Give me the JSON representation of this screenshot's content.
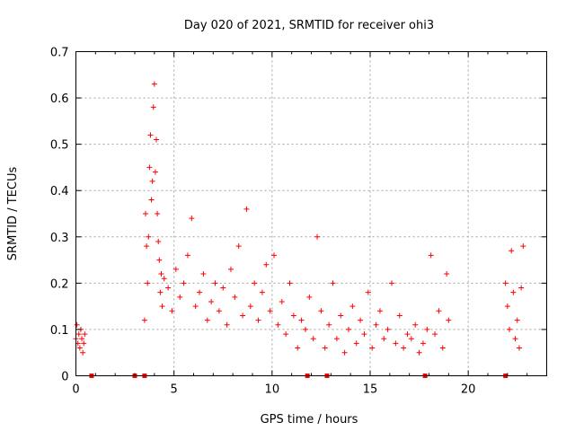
{
  "chart_data": {
    "type": "scatter",
    "title": "Day 020 of 2021, SRMTID for receiver ohi3",
    "xlabel": "GPS time / hours",
    "ylabel": "SRMTID / TECUs",
    "xlim": [
      0,
      24
    ],
    "ylim": [
      0,
      0.7
    ],
    "xticks": [
      0,
      5,
      10,
      15,
      20
    ],
    "xtick_labels": [
      "0",
      "5",
      "10",
      "15",
      "20"
    ],
    "yticks": [
      0,
      0.1,
      0.2,
      0.3,
      0.4,
      0.5,
      0.6,
      0.7
    ],
    "ytick_labels": [
      "0",
      "0.1",
      "0.2",
      "0.3",
      "0.4",
      "0.5",
      "0.6",
      "0.7"
    ],
    "grid": true,
    "marker": "+",
    "color": "#ff0000",
    "series": [
      {
        "name": "SRMTID",
        "x": [
          0.0,
          0.05,
          0.1,
          0.15,
          0.2,
          0.25,
          0.3,
          0.35,
          0.4,
          0.45,
          3.5,
          3.55,
          3.6,
          3.65,
          3.7,
          3.75,
          3.8,
          3.85,
          3.9,
          3.95,
          4.0,
          4.05,
          4.1,
          4.15,
          4.2,
          4.25,
          4.3,
          4.35,
          4.4,
          4.5,
          4.7,
          4.9,
          5.1,
          5.3,
          5.5,
          5.7,
          5.9,
          6.1,
          6.3,
          6.5,
          6.7,
          6.9,
          7.1,
          7.3,
          7.5,
          7.7,
          7.9,
          8.1,
          8.3,
          8.5,
          8.7,
          8.9,
          9.1,
          9.3,
          9.5,
          9.7,
          9.9,
          10.1,
          10.3,
          10.5,
          10.7,
          10.9,
          11.1,
          11.3,
          11.5,
          11.7,
          11.9,
          12.1,
          12.3,
          12.5,
          12.7,
          12.9,
          13.1,
          13.3,
          13.5,
          13.7,
          13.9,
          14.1,
          14.3,
          14.5,
          14.7,
          14.9,
          15.1,
          15.3,
          15.5,
          15.7,
          15.9,
          16.1,
          16.3,
          16.5,
          16.7,
          16.9,
          17.1,
          17.3,
          17.5,
          17.7,
          17.9,
          18.1,
          18.3,
          18.5,
          18.7,
          18.9,
          19.0,
          21.9,
          22.0,
          22.1,
          22.2,
          22.3,
          22.4,
          22.5,
          22.6,
          22.7,
          22.8
        ],
        "y": [
          0.08,
          0.11,
          0.07,
          0.09,
          0.06,
          0.1,
          0.08,
          0.05,
          0.07,
          0.09,
          0.12,
          0.35,
          0.28,
          0.2,
          0.3,
          0.45,
          0.52,
          0.38,
          0.42,
          0.58,
          0.63,
          0.44,
          0.51,
          0.35,
          0.29,
          0.25,
          0.18,
          0.22,
          0.15,
          0.21,
          0.19,
          0.14,
          0.23,
          0.17,
          0.2,
          0.26,
          0.34,
          0.15,
          0.18,
          0.22,
          0.12,
          0.16,
          0.2,
          0.14,
          0.19,
          0.11,
          0.23,
          0.17,
          0.28,
          0.13,
          0.36,
          0.15,
          0.2,
          0.12,
          0.18,
          0.24,
          0.14,
          0.26,
          0.11,
          0.16,
          0.09,
          0.2,
          0.13,
          0.06,
          0.12,
          0.1,
          0.17,
          0.08,
          0.3,
          0.14,
          0.06,
          0.11,
          0.2,
          0.08,
          0.13,
          0.05,
          0.1,
          0.15,
          0.07,
          0.12,
          0.09,
          0.18,
          0.06,
          0.11,
          0.14,
          0.08,
          0.1,
          0.2,
          0.07,
          0.13,
          0.06,
          0.09,
          0.08,
          0.11,
          0.05,
          0.07,
          0.1,
          0.26,
          0.09,
          0.14,
          0.06,
          0.22,
          0.12,
          0.2,
          0.15,
          0.1,
          0.27,
          0.18,
          0.08,
          0.12,
          0.06,
          0.19,
          0.28
        ],
        "gap_markers_x": [
          0.8,
          3.0,
          3.5,
          11.8,
          12.8,
          17.8,
          21.9
        ]
      }
    ]
  }
}
